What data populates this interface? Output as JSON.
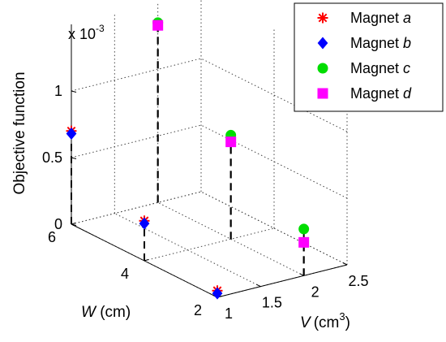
{
  "chart_data": {
    "type": "scatter-3d-stem",
    "title": "",
    "scale_label": {
      "base": "x 10",
      "exponent": "-3"
    },
    "axes": {
      "v": {
        "label_var": "V",
        "label_unit": "(cm",
        "label_unit_exp": "3",
        "label_unit_close": ")",
        "range": [
          1,
          2.5
        ],
        "ticks": [
          1,
          1.5,
          2,
          2.5
        ],
        "tick_labels": [
          "1",
          "1.5",
          "2",
          "2.5"
        ]
      },
      "w": {
        "label_var": "W",
        "label_unit": " (cm)",
        "range": [
          2,
          6
        ],
        "ticks": [
          2,
          4,
          6
        ],
        "tick_labels": [
          "2",
          "4",
          "6"
        ]
      },
      "z": {
        "label": "Objective function",
        "range": [
          0,
          0.0015
        ],
        "ticks": [
          0,
          0.0005,
          0.001
        ],
        "tick_labels": [
          "0",
          "0.5",
          "1"
        ]
      }
    },
    "grid": true,
    "legend_position": "top-right",
    "series": [
      {
        "name_prefix": "Magnet ",
        "name_letter": "a",
        "marker": "asterisk",
        "color": "#ff0000",
        "points": [
          {
            "v": 1,
            "w": 6,
            "z": 0.0007
          },
          {
            "v": 1,
            "w": 4,
            "z": 0.0003
          },
          {
            "v": 1,
            "w": 2,
            "z": 5e-05
          }
        ]
      },
      {
        "name_prefix": "Magnet ",
        "name_letter": "b",
        "marker": "diamond",
        "color": "#0000ff",
        "points": [
          {
            "v": 1,
            "w": 6,
            "z": 0.00068
          },
          {
            "v": 1,
            "w": 4,
            "z": 0.00028
          },
          {
            "v": 1,
            "w": 2,
            "z": 3e-05
          }
        ]
      },
      {
        "name_prefix": "Magnet ",
        "name_letter": "c",
        "marker": "circle",
        "color": "#00dd00",
        "points": [
          {
            "v": 2,
            "w": 6,
            "z": 0.00135
          },
          {
            "v": 2,
            "w": 4,
            "z": 0.00078
          },
          {
            "v": 2,
            "w": 2,
            "z": 0.00035
          }
        ]
      },
      {
        "name_prefix": "Magnet ",
        "name_letter": "d",
        "marker": "square",
        "color": "#ff00ff",
        "points": [
          {
            "v": 2,
            "w": 6,
            "z": 0.00133
          },
          {
            "v": 2,
            "w": 4,
            "z": 0.00073
          },
          {
            "v": 2,
            "w": 2,
            "z": 0.00025
          }
        ]
      }
    ]
  }
}
